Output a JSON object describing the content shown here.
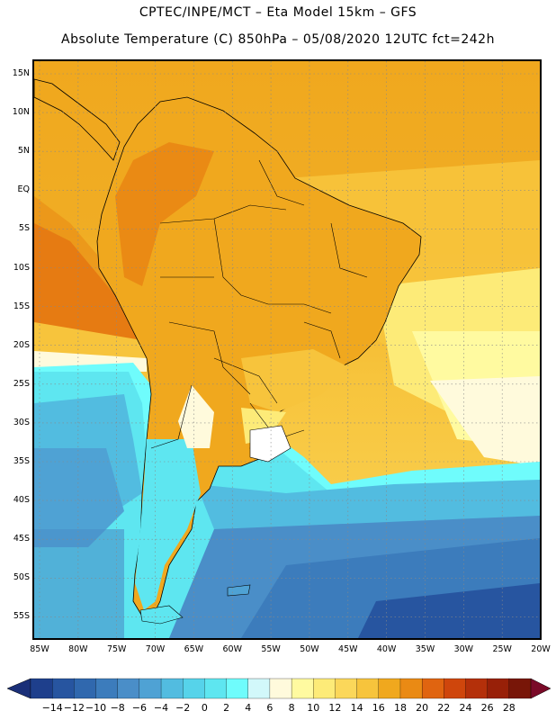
{
  "header": {
    "line1": "CPTEC/INPE/MCT –  Eta Model 15km – GFS",
    "line2": "Absolute Temperature (C) 850hPa – 05/08/2020 12UTC fct=242h"
  },
  "map": {
    "lat_labels": [
      "15N",
      "10N",
      "5N",
      "EQ",
      "5S",
      "10S",
      "15S",
      "20S",
      "25S",
      "30S",
      "35S",
      "40S",
      "45S",
      "50S",
      "55S"
    ],
    "lon_labels": [
      "85W",
      "80W",
      "75W",
      "70W",
      "65W",
      "60W",
      "55W",
      "50W",
      "45W",
      "40W",
      "35W",
      "30W",
      "25W",
      "20W"
    ],
    "field": "temperature",
    "units": "C"
  },
  "colorbar": {
    "labels": [
      "-14",
      "-12",
      "-10",
      "-8",
      "-6",
      "-4",
      "-2",
      "0",
      "2",
      "4",
      "6",
      "8",
      "10",
      "12",
      "14",
      "16",
      "18",
      "20",
      "22",
      "24",
      "26",
      "28"
    ],
    "colors": [
      "#1e3f8c",
      "#2755a0",
      "#3068ae",
      "#3c7cbc",
      "#4a8ec8",
      "#4fa2d4",
      "#52bce0",
      "#56d3ea",
      "#5ee6f0",
      "#6ffcfc",
      "#d2f8fa",
      "#fffadc",
      "#fffaa0",
      "#fdeb78",
      "#fbd75a",
      "#f7c43c",
      "#f0a81e",
      "#ea8a14",
      "#e06410",
      "#cf460c",
      "#b4300a",
      "#982008",
      "#781608"
    ],
    "low_arrow_color": "#1a2f78",
    "high_arrow_color": "#7a0a28"
  }
}
